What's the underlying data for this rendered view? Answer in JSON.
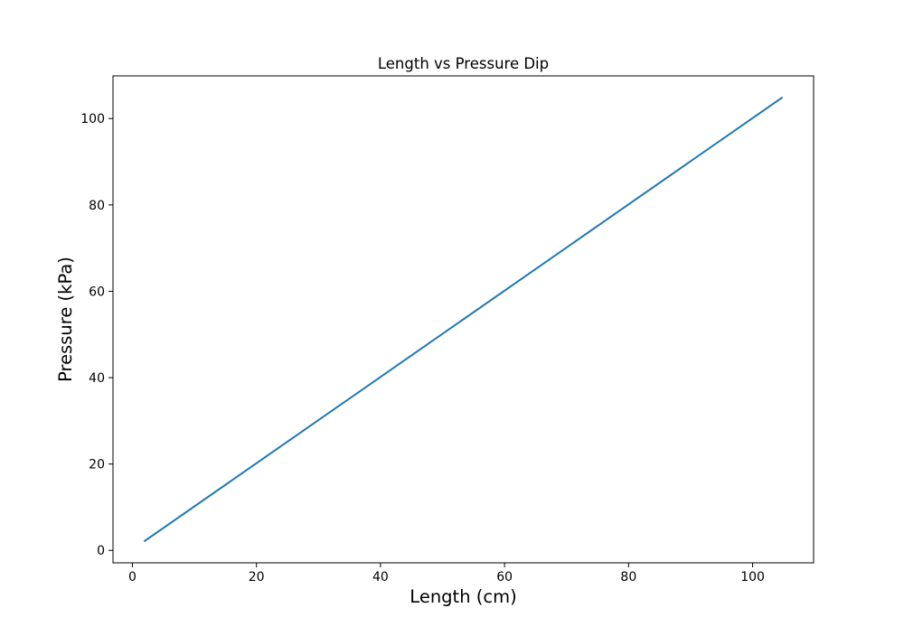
{
  "chart_data": {
    "type": "line",
    "title": "Length vs Pressure Dip",
    "xlabel": "Length (cm)",
    "ylabel": "Pressure (kPa)",
    "xlim": [
      -3.13,
      109.83
    ],
    "ylim": [
      -2.88,
      109.88
    ],
    "xticks": [
      0,
      20,
      40,
      60,
      80,
      100
    ],
    "yticks": [
      0,
      20,
      40,
      60,
      80,
      100
    ],
    "grid": false,
    "series": [
      {
        "color": "#1f77b4",
        "x": [
          2.0,
          104.7
        ],
        "y": [
          2.2,
          104.8
        ]
      }
    ]
  }
}
